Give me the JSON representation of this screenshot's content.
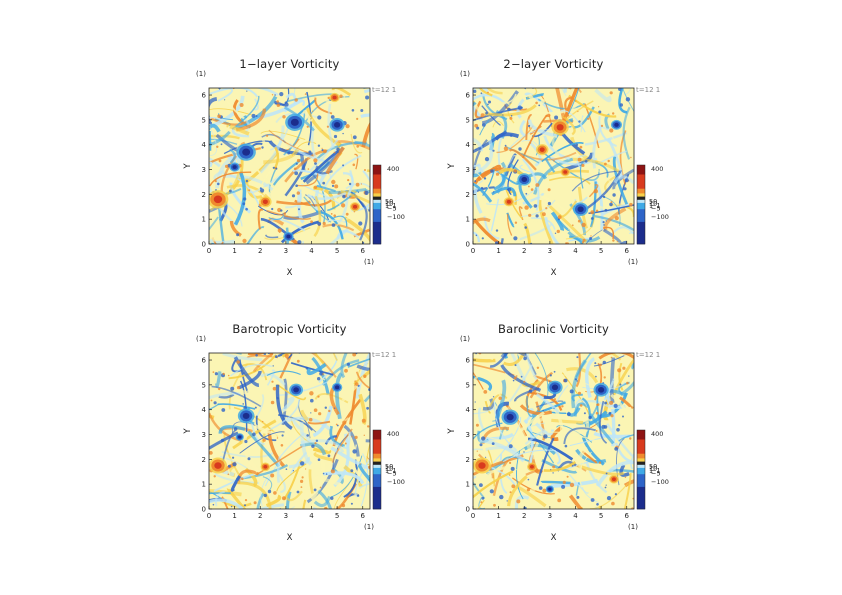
{
  "colors": {
    "scale": [
      "#1c2d8c",
      "#2e64c8",
      "#3fa9e6",
      "#bfe6f7",
      "#fbf5b4",
      "#f7d04a",
      "#ef8a2e",
      "#d83a1e",
      "#8e1414"
    ]
  },
  "chart_data": [
    {
      "type": "heatmap",
      "title": "1−layer Vorticity",
      "xlabel": "X",
      "ylabel": "Y",
      "xunit": "(1)",
      "yunit": "(1)",
      "xlim": [
        0,
        6.2832
      ],
      "ylim": [
        0,
        6.2832
      ],
      "xticks": [
        "0",
        "1",
        "2",
        "3",
        "4",
        "5",
        "6"
      ],
      "yticks": [
        "0",
        "1",
        "2",
        "3",
        "4",
        "5",
        "6"
      ],
      "time_label": "t=12 1",
      "colorbar": {
        "labels": [
          "400",
          "50",
          "10",
          "1",
          "−1",
          "−5",
          "−100"
        ]
      },
      "vortices": [
        {
          "x": 0.35,
          "y": 1.8,
          "sign": "positive",
          "r": 0.3
        },
        {
          "x": 1.45,
          "y": 3.7,
          "sign": "negative",
          "r": 0.28
        },
        {
          "x": 3.35,
          "y": 4.9,
          "sign": "negative",
          "r": 0.28
        },
        {
          "x": 5.0,
          "y": 4.8,
          "sign": "negative",
          "r": 0.22
        },
        {
          "x": 1.0,
          "y": 3.1,
          "sign": "negative",
          "r": 0.15
        },
        {
          "x": 2.2,
          "y": 1.7,
          "sign": "positive",
          "r": 0.18
        },
        {
          "x": 5.7,
          "y": 1.5,
          "sign": "positive",
          "r": 0.15
        },
        {
          "x": 3.1,
          "y": 0.3,
          "sign": "negative",
          "r": 0.15
        },
        {
          "x": 4.9,
          "y": 5.9,
          "sign": "positive",
          "r": 0.15
        }
      ]
    },
    {
      "type": "heatmap",
      "title": "2−layer Vorticity",
      "xlabel": "X",
      "ylabel": "Y",
      "xunit": "(1)",
      "yunit": "(1)",
      "xlim": [
        0,
        6.2832
      ],
      "ylim": [
        0,
        6.2832
      ],
      "xticks": [
        "0",
        "1",
        "2",
        "3",
        "4",
        "5",
        "6"
      ],
      "yticks": [
        "0",
        "1",
        "2",
        "3",
        "4",
        "5",
        "6"
      ],
      "time_label": "t=12 1",
      "colorbar": {
        "labels": [
          "400",
          "50",
          "10",
          "1",
          "−1",
          "−5",
          "−100"
        ]
      },
      "vortices": [
        {
          "x": 3.4,
          "y": 4.7,
          "sign": "positive",
          "r": 0.25
        },
        {
          "x": 2.7,
          "y": 3.8,
          "sign": "positive",
          "r": 0.18
        },
        {
          "x": 1.4,
          "y": 1.7,
          "sign": "positive",
          "r": 0.15
        },
        {
          "x": 3.6,
          "y": 2.9,
          "sign": "positive",
          "r": 0.14
        },
        {
          "x": 2.0,
          "y": 2.6,
          "sign": "negative",
          "r": 0.2
        },
        {
          "x": 4.2,
          "y": 1.4,
          "sign": "negative",
          "r": 0.22
        },
        {
          "x": 5.6,
          "y": 4.8,
          "sign": "negative",
          "r": 0.16
        }
      ]
    },
    {
      "type": "heatmap",
      "title": "Barotropic Vorticity",
      "xlabel": "X",
      "ylabel": "Y",
      "xunit": "(1)",
      "yunit": "(1)",
      "xlim": [
        0,
        6.2832
      ],
      "ylim": [
        0,
        6.2832
      ],
      "xticks": [
        "0",
        "1",
        "2",
        "3",
        "4",
        "5",
        "6"
      ],
      "yticks": [
        "0",
        "1",
        "2",
        "3",
        "4",
        "5",
        "6"
      ],
      "time_label": "t=12 1",
      "colorbar": {
        "labels": [
          "400",
          "50",
          "10",
          "1",
          "−1",
          "−5",
          "−100"
        ]
      },
      "vortices": [
        {
          "x": 0.35,
          "y": 1.75,
          "sign": "positive",
          "r": 0.26
        },
        {
          "x": 1.45,
          "y": 3.75,
          "sign": "negative",
          "r": 0.24
        },
        {
          "x": 3.4,
          "y": 4.8,
          "sign": "negative",
          "r": 0.2
        },
        {
          "x": 2.2,
          "y": 1.7,
          "sign": "positive",
          "r": 0.14
        },
        {
          "x": 1.2,
          "y": 2.9,
          "sign": "negative",
          "r": 0.12
        },
        {
          "x": 5.0,
          "y": 4.9,
          "sign": "negative",
          "r": 0.15
        }
      ]
    },
    {
      "type": "heatmap",
      "title": "Baroclinic Vorticity",
      "xlabel": "X",
      "ylabel": "Y",
      "xunit": "(1)",
      "yunit": "(1)",
      "xlim": [
        0,
        6.2832
      ],
      "ylim": [
        0,
        6.2832
      ],
      "xticks": [
        "0",
        "1",
        "2",
        "3",
        "4",
        "5",
        "6"
      ],
      "yticks": [
        "0",
        "1",
        "2",
        "3",
        "4",
        "5",
        "6"
      ],
      "time_label": "t=12 1",
      "colorbar": {
        "labels": [
          "400",
          "50",
          "10",
          "1",
          "−1",
          "−5",
          "−100"
        ]
      },
      "vortices": [
        {
          "x": 0.35,
          "y": 1.75,
          "sign": "positive",
          "r": 0.26
        },
        {
          "x": 1.45,
          "y": 3.7,
          "sign": "negative",
          "r": 0.25
        },
        {
          "x": 3.2,
          "y": 4.9,
          "sign": "negative",
          "r": 0.22
        },
        {
          "x": 5.0,
          "y": 4.8,
          "sign": "negative",
          "r": 0.22
        },
        {
          "x": 2.3,
          "y": 1.7,
          "sign": "positive",
          "r": 0.14
        },
        {
          "x": 5.5,
          "y": 1.2,
          "sign": "positive",
          "r": 0.14
        },
        {
          "x": 3.0,
          "y": 0.8,
          "sign": "negative",
          "r": 0.12
        }
      ]
    }
  ]
}
